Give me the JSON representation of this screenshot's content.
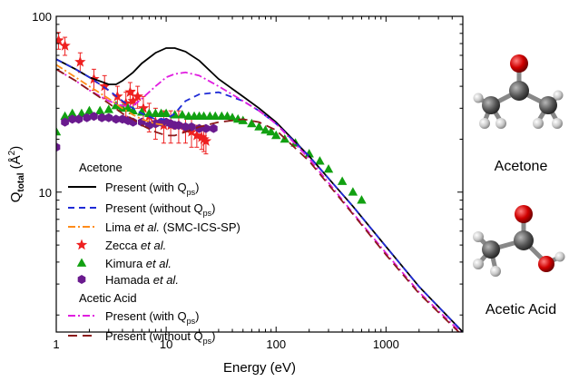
{
  "chart_data": {
    "type": "line",
    "xlabel": "Energy (eV)",
    "ylabel": {
      "main": "Q",
      "sub": "total",
      "unit_pre": " (Å",
      "unit_sup": "2",
      "unit_post": ")"
    },
    "x_scale": "log",
    "y_scale": "log",
    "xlim": [
      1,
      5000
    ],
    "ylim": [
      1.6,
      100
    ],
    "x_ticks": [
      {
        "value": 1,
        "label": "1"
      },
      {
        "value": 10,
        "label": "10"
      },
      {
        "value": 100,
        "label": "100"
      },
      {
        "value": 1000,
        "label": "1000"
      }
    ],
    "y_ticks": [
      {
        "value": 10,
        "label": "10"
      },
      {
        "value": 100,
        "label": "100"
      }
    ],
    "grid": false,
    "legend_placement": "bottom-left",
    "legend": {
      "group1_title": "Acetone",
      "group2_title": "Acetic Acid",
      "labels": {
        "acetone_with_qps": {
          "pre": "Present (with Q",
          "sub": "ps",
          "post": ")"
        },
        "acetone_without_qps": {
          "pre": "Present (without Q",
          "sub": "ps",
          "post": ")"
        },
        "lima": {
          "name": "Lima",
          "etal": " et al.",
          "post": " (SMC-ICS-SP)"
        },
        "zecca": {
          "name": "Zecca",
          "etal": " et al.",
          "post": ""
        },
        "kimura": {
          "name": "Kimura",
          "etal": " et al.",
          "post": ""
        },
        "hamada": {
          "name": "Hamada",
          "etal": " et al.",
          "post": ""
        },
        "acetic_with_qps": {
          "pre": "Present (with Q",
          "sub": "ps",
          "post": ")"
        },
        "acetic_without_qps": {
          "pre": "Present (without Q",
          "sub": "ps",
          "post": ")"
        }
      }
    },
    "series": [
      {
        "key": "acetone_with_qps",
        "kind": "line",
        "color": "#000000",
        "dash": "",
        "x": [
          1,
          1.5,
          2,
          3,
          3.5,
          4,
          5,
          6,
          8,
          10,
          12,
          15,
          20,
          30,
          50,
          70,
          100,
          200,
          500,
          1000,
          2000,
          5000
        ],
        "y": [
          57,
          50,
          45,
          41,
          41,
          43,
          48,
          54,
          62,
          66,
          66,
          63,
          56,
          44,
          35,
          30,
          25,
          16,
          8.3,
          4.9,
          2.9,
          1.6
        ]
      },
      {
        "key": "acetone_without_qps",
        "kind": "line",
        "color": "#1f2bd6",
        "dash": "7,5",
        "x": [
          1,
          1.5,
          2,
          3,
          4,
          5,
          6,
          8,
          10,
          12,
          15,
          20,
          30,
          50,
          70,
          100,
          200,
          500,
          1000,
          2000,
          5000
        ],
        "y": [
          57,
          50,
          45,
          38,
          33,
          30,
          28,
          26,
          26,
          28,
          33,
          36,
          37,
          33,
          29,
          24.5,
          16,
          8.3,
          4.9,
          2.9,
          1.6
        ]
      },
      {
        "key": "lima",
        "kind": "line",
        "color": "#ff8c1a",
        "dash": "8,3,2,3",
        "x": [
          1,
          1.5,
          2,
          3,
          4,
          5,
          6,
          8,
          10
        ],
        "y": [
          53,
          45,
          40,
          34,
          30,
          27.5,
          26,
          24.5,
          24
        ]
      },
      {
        "key": "acetic_with_qps",
        "kind": "line",
        "color": "#e01ee0",
        "dash": "8,3,2,3",
        "x": [
          1,
          1.5,
          2,
          3,
          4,
          5,
          6,
          8,
          10,
          12,
          15,
          20,
          30,
          50,
          70,
          100,
          200,
          500,
          1000,
          2000,
          5000
        ],
        "y": [
          50,
          43,
          38,
          33,
          31,
          31,
          34,
          40,
          45,
          47,
          48,
          46,
          40,
          33,
          29,
          24.5,
          15.5,
          7.6,
          4.5,
          2.7,
          1.55
        ]
      },
      {
        "key": "acetic_without_qps",
        "kind": "line",
        "color": "#8b1a1a",
        "dash": "10,6",
        "x": [
          1,
          1.5,
          2,
          3,
          4,
          5,
          6,
          8,
          10,
          12,
          15,
          20,
          30,
          50,
          70,
          100,
          200,
          500,
          1000,
          2000,
          5000
        ],
        "y": [
          50,
          43,
          38,
          32,
          28,
          26,
          24,
          22,
          21,
          21,
          22,
          23.5,
          25,
          26,
          25,
          22.5,
          15,
          7.5,
          4.4,
          2.65,
          1.52
        ]
      },
      {
        "key": "zecca",
        "kind": "star",
        "color": "#ee2020",
        "x": [
          1.05,
          1.2,
          1.65,
          2.2,
          2.75,
          3.6,
          4.3,
          4.7,
          5.0,
          5.5,
          6.2,
          7.0,
          8.0,
          9.5,
          11,
          13,
          15,
          17,
          19,
          21,
          22,
          23
        ],
        "y": [
          73,
          68,
          55,
          44,
          40,
          35,
          32,
          37,
          33,
          35,
          30,
          27,
          25,
          24,
          24,
          24,
          23,
          22,
          21,
          20.5,
          20,
          19.5
        ],
        "err": [
          8,
          8,
          7,
          6,
          6,
          5,
          5,
          5,
          5,
          5,
          5,
          5,
          5,
          5,
          5,
          5,
          4,
          4,
          3,
          3,
          3,
          3
        ]
      },
      {
        "key": "kimura",
        "kind": "triangle",
        "color": "#11a011",
        "x": [
          1,
          1.2,
          1.4,
          1.7,
          2,
          2.5,
          3,
          3.5,
          4,
          4.5,
          5,
          6,
          7,
          8,
          9,
          10,
          12,
          14,
          16,
          18,
          20,
          22,
          25,
          28,
          32,
          36,
          40,
          45,
          50,
          60,
          70,
          80,
          90,
          100,
          120,
          150,
          200,
          250,
          300,
          400,
          500,
          600
        ],
        "y": [
          22,
          27,
          28,
          28,
          29,
          29,
          29.5,
          31,
          30,
          30,
          29,
          28.5,
          28,
          28,
          28,
          28,
          27.5,
          27.5,
          27,
          27,
          27,
          27,
          27,
          27,
          27,
          27,
          26.5,
          26,
          25.5,
          24.5,
          23.5,
          22.5,
          22,
          21,
          20,
          19,
          16.5,
          15,
          13.5,
          11.5,
          10,
          9
        ]
      },
      {
        "key": "hamada",
        "kind": "hexagon",
        "color": "#6a1a8e",
        "x": [
          1,
          1.2,
          1.4,
          1.6,
          1.9,
          2.2,
          2.6,
          3,
          3.5,
          4,
          4.5,
          5,
          6,
          7,
          8,
          9,
          10,
          11,
          12,
          13,
          15,
          17,
          20,
          23,
          27
        ],
        "y": [
          18,
          25,
          26,
          26,
          26.5,
          27,
          26.5,
          26.5,
          26,
          26,
          25.5,
          25,
          25,
          24,
          24.5,
          25,
          25,
          24.5,
          24,
          24,
          23.5,
          23.5,
          23,
          23,
          23
        ]
      }
    ]
  },
  "molecules": {
    "acetone": {
      "caption": "Acetone"
    },
    "acetic_acid": {
      "caption": "Acetic Acid"
    }
  }
}
